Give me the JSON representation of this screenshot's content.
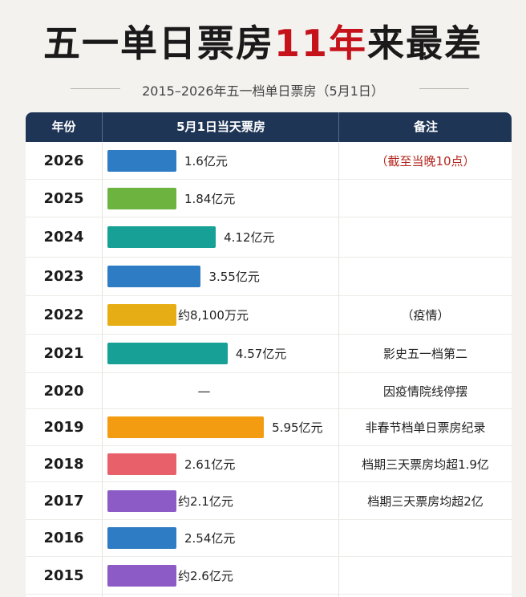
{
  "title": {
    "part1": "五一单日票房",
    "highlight": "11年",
    "part2": "来最差"
  },
  "subtitle": "2015–2026年五一档单日票房（5月1日）",
  "columns": {
    "year": "年份",
    "boxoffice": "5月1日当天票房",
    "note": "备注"
  },
  "colors": {
    "header": "#1f3556",
    "highlight": "#c5121b",
    "blue": "#2e7cc3",
    "green": "#6db33f",
    "teal": "#17a095",
    "gold": "#e6ae14",
    "orange": "#f39c12",
    "red": "#e8616a",
    "purple": "#8c5bc5"
  },
  "chart_data": {
    "type": "bar",
    "title": "五一单日票房11年来最差",
    "subtitle": "2015–2026年五一档单日票房（5月1日）",
    "unit": "亿元",
    "rows": [
      {
        "year": "2026",
        "value": 1.6,
        "label": "1.6亿元",
        "note": "（截至当晚10点）",
        "color": "#2e7cc3",
        "note_red": true
      },
      {
        "year": "2025",
        "value": 1.84,
        "label": "1.84亿元",
        "note": "",
        "color": "#6db33f"
      },
      {
        "year": "2024",
        "value": 4.12,
        "label": "4.12亿元",
        "note": "",
        "color": "#17a095"
      },
      {
        "year": "2023",
        "value": 3.55,
        "label": "3.55亿元",
        "note": "",
        "color": "#2e7cc3"
      },
      {
        "year": "2022",
        "value": 0.81,
        "label": "约8,100万元",
        "note": "（疫情）",
        "color": "#e6ae14"
      },
      {
        "year": "2021",
        "value": 4.57,
        "label": "4.57亿元",
        "note": "影史五一档第二",
        "color": "#17a095"
      },
      {
        "year": "2020",
        "value": null,
        "label": "—",
        "note": "因疫情院线停摆",
        "color": ""
      },
      {
        "year": "2019",
        "value": 5.95,
        "label": "5.95亿元",
        "note": "非春节档单日票房纪录",
        "color": "#f39c12"
      },
      {
        "year": "2018",
        "value": 2.61,
        "label": "2.61亿元",
        "note": "档期三天票房均超1.9亿",
        "color": "#e8616a"
      },
      {
        "year": "2017",
        "value": 2.1,
        "label": "约2.1亿元",
        "note": "档期三天票房均超2亿",
        "color": "#8c5bc5"
      },
      {
        "year": "2016",
        "value": 2.54,
        "label": "2.54亿元",
        "note": "",
        "color": "#2e7cc3"
      },
      {
        "year": "2015",
        "value": 2.6,
        "label": "约2.6亿元",
        "note": "",
        "color": "#8c5bc5"
      }
    ]
  }
}
